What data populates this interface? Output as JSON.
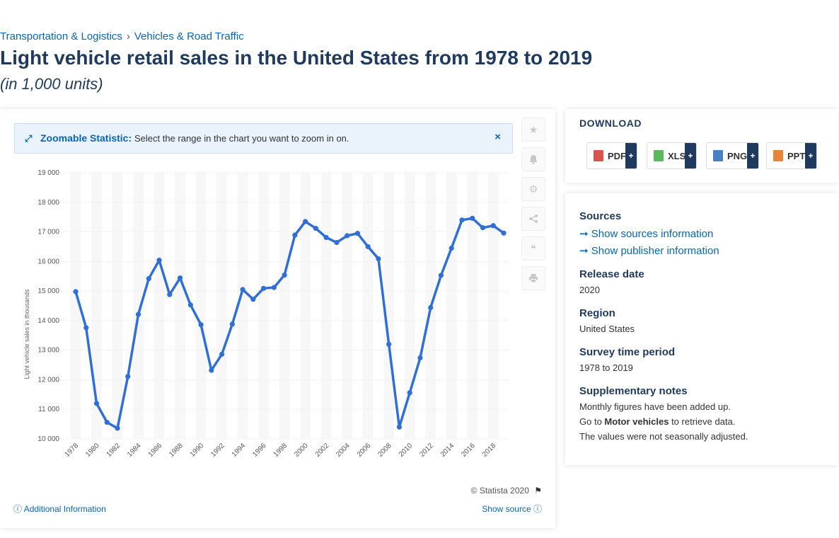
{
  "breadcrumb": {
    "item1": "Transportation & Logistics",
    "sep": "›",
    "item2": "Vehicles & Road Traffic"
  },
  "title": "Light vehicle retail sales in the United States from 1978 to 2019",
  "subtitle": "(in 1,000 units)",
  "zoom": {
    "label": "Zoomable Statistic:",
    "text": "Select the range in the chart you want to zoom in on.",
    "close": "×"
  },
  "copyright": "© Statista 2020",
  "additional_info": "Additional Information",
  "show_source": "Show source",
  "download": {
    "title": "DOWNLOAD",
    "buttons": [
      {
        "label": "PDF",
        "plus": "+",
        "color": "#d9534f"
      },
      {
        "label": "XLS",
        "plus": "+",
        "color": "#5cb85c"
      },
      {
        "label": "PNG",
        "plus": "+",
        "color": "#4a7fc1"
      },
      {
        "label": "PPT",
        "plus": "+",
        "color": "#e8833a"
      }
    ]
  },
  "info": {
    "sources_h": "Sources",
    "sources_link": "Show sources information",
    "publisher_link": "Show publisher information",
    "release_h": "Release date",
    "release_v": "2020",
    "region_h": "Region",
    "region_v": "United States",
    "period_h": "Survey time period",
    "period_v": "1978 to 2019",
    "notes_h": "Supplementary notes",
    "notes_1": "Monthly figures have been added up.",
    "notes_2_pre": "Go to ",
    "notes_2_bold": "Motor vehicles",
    "notes_2_post": " to retrieve data.",
    "notes_3": "The values were not seasonally adjusted."
  },
  "colors": {
    "line": "#2f6fd6",
    "title": "#1f3a5c",
    "link": "#0666b3"
  },
  "chart_data": {
    "type": "line",
    "title": "",
    "xlabel": "",
    "ylabel": "Light vehicle sales in thousands",
    "ylim": [
      10000,
      19000
    ],
    "yticks": [
      10000,
      11000,
      12000,
      13000,
      14000,
      15000,
      16000,
      17000,
      18000,
      19000
    ],
    "ytick_labels": [
      "10 000",
      "11 000",
      "12 000",
      "13 000",
      "14 000",
      "15 000",
      "16 000",
      "17 000",
      "18 000",
      "19 000"
    ],
    "xtick_labels": [
      "1978",
      "1980",
      "1982",
      "1984",
      "1986",
      "1988",
      "1990",
      "1992",
      "1994",
      "1996",
      "1998",
      "2000",
      "2002",
      "2004",
      "2006",
      "2008",
      "2010",
      "2012",
      "2014",
      "2016",
      "2018"
    ],
    "grid": "alternating vertical bands",
    "series": [
      {
        "x": [
          1978,
          1979,
          1980,
          1981,
          1982,
          1983,
          1984,
          1985,
          1986,
          1987,
          1988,
          1989,
          1990,
          1991,
          1992,
          1993,
          1994,
          1995,
          1996,
          1997,
          1998,
          1999,
          2000,
          2001,
          2002,
          2003,
          2004,
          2005,
          2006,
          2007,
          2008,
          2009,
          2010,
          2011,
          2012,
          2013,
          2014,
          2015,
          2016,
          2017,
          2018,
          2019
        ],
        "values": [
          14980,
          13760,
          11200,
          10560,
          10360,
          12110,
          14210,
          15420,
          16040,
          14880,
          15440,
          14530,
          13860,
          12320,
          12860,
          13880,
          15050,
          14720,
          15090,
          15120,
          15540,
          16890,
          17350,
          17120,
          16810,
          16640,
          16870,
          16950,
          16500,
          16090,
          13200,
          10400,
          11560,
          12740,
          14440,
          15530,
          16450,
          17400,
          17460,
          17140,
          17210,
          16960
        ]
      }
    ]
  }
}
